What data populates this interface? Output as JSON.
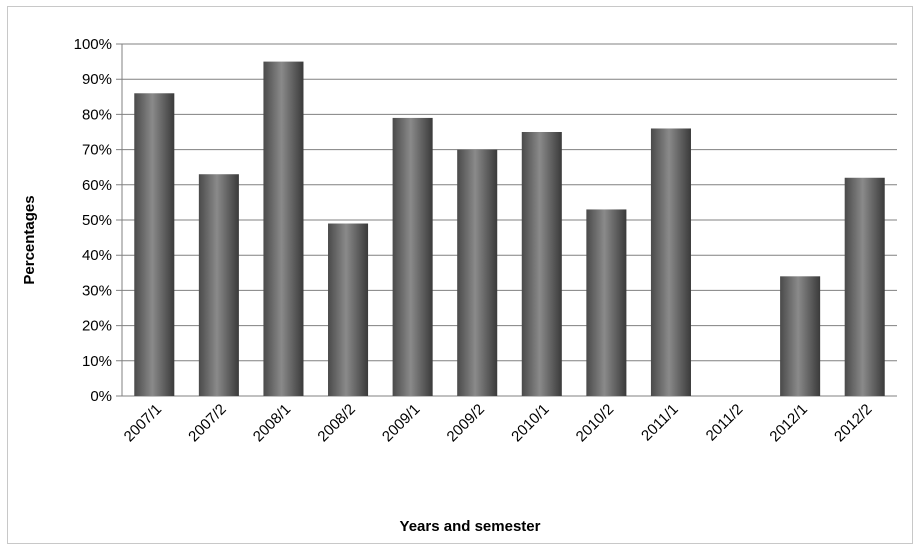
{
  "chart_data": {
    "type": "bar",
    "title": "",
    "xlabel": "Years and semester",
    "ylabel": "Percentages",
    "categories": [
      "2007/1",
      "2007/2",
      "2008/1",
      "2008/2",
      "2009/1",
      "2009/2",
      "2010/1",
      "2010/2",
      "2011/1",
      "2011/2",
      "2012/1",
      "2012/2"
    ],
    "values": [
      86,
      63,
      95,
      49,
      79,
      70,
      75,
      53,
      76,
      0,
      34,
      62
    ],
    "ylim": [
      0,
      100
    ],
    "y_ticks": [
      "0%",
      "10%",
      "20%",
      "30%",
      "40%",
      "50%",
      "60%",
      "70%",
      "80%",
      "90%",
      "100%"
    ],
    "y_unit": "%",
    "grid": true,
    "legend": "none",
    "colors": {
      "bar_dark": "#3a3a3a",
      "bar_light": "#8a8a8a",
      "grid": "#808080"
    }
  }
}
